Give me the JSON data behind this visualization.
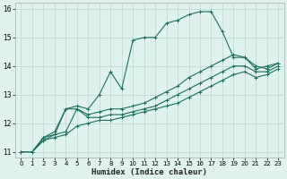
{
  "xlabel": "Humidex (Indice chaleur)",
  "ylabel": "",
  "bg_color": "#dff2ee",
  "grid_color": "#b8d8d2",
  "line_color": "#1e6e60",
  "xlim": [
    -0.5,
    23.5
  ],
  "ylim": [
    10.8,
    16.2
  ],
  "yticks": [
    11,
    12,
    13,
    14,
    15,
    16
  ],
  "xticks": [
    0,
    1,
    2,
    3,
    4,
    5,
    6,
    7,
    8,
    9,
    10,
    11,
    12,
    13,
    14,
    15,
    16,
    17,
    18,
    19,
    20,
    21,
    22,
    23
  ],
  "series": [
    {
      "x": [
        0,
        1,
        2,
        3,
        4,
        5,
        6,
        7,
        8,
        9,
        10,
        11,
        12,
        13,
        14,
        15,
        16,
        17,
        18,
        19,
        20,
        21,
        22,
        23
      ],
      "y": [
        11.0,
        11.0,
        11.5,
        11.7,
        12.5,
        12.6,
        12.5,
        13.0,
        13.8,
        13.2,
        14.9,
        15.0,
        15.0,
        15.5,
        15.6,
        15.8,
        15.9,
        15.9,
        15.2,
        14.3,
        14.3,
        13.9,
        14.0,
        14.1
      ]
    },
    {
      "x": [
        0,
        1,
        2,
        3,
        4,
        5,
        6,
        7,
        8,
        9,
        10,
        11,
        12,
        13,
        14,
        15,
        16,
        17,
        18,
        19,
        20,
        21,
        22,
        23
      ],
      "y": [
        11.0,
        11.0,
        11.5,
        11.6,
        12.5,
        12.5,
        12.3,
        12.4,
        12.5,
        12.5,
        12.6,
        12.7,
        12.9,
        13.1,
        13.3,
        13.6,
        13.8,
        14.0,
        14.2,
        14.4,
        14.3,
        14.0,
        13.9,
        14.1
      ]
    },
    {
      "x": [
        0,
        1,
        2,
        3,
        4,
        5,
        6,
        7,
        8,
        9,
        10,
        11,
        12,
        13,
        14,
        15,
        16,
        17,
        18,
        19,
        20,
        21,
        22,
        23
      ],
      "y": [
        11.0,
        11.0,
        11.4,
        11.6,
        11.7,
        12.5,
        12.2,
        12.2,
        12.3,
        12.3,
        12.4,
        12.5,
        12.6,
        12.8,
        13.0,
        13.2,
        13.4,
        13.6,
        13.8,
        14.0,
        14.0,
        13.8,
        13.8,
        14.0
      ]
    },
    {
      "x": [
        0,
        1,
        2,
        3,
        4,
        5,
        6,
        7,
        8,
        9,
        10,
        11,
        12,
        13,
        14,
        15,
        16,
        17,
        18,
        19,
        20,
        21,
        22,
        23
      ],
      "y": [
        11.0,
        11.0,
        11.4,
        11.5,
        11.6,
        11.9,
        12.0,
        12.1,
        12.1,
        12.2,
        12.3,
        12.4,
        12.5,
        12.6,
        12.7,
        12.9,
        13.1,
        13.3,
        13.5,
        13.7,
        13.8,
        13.6,
        13.7,
        13.9
      ]
    }
  ]
}
